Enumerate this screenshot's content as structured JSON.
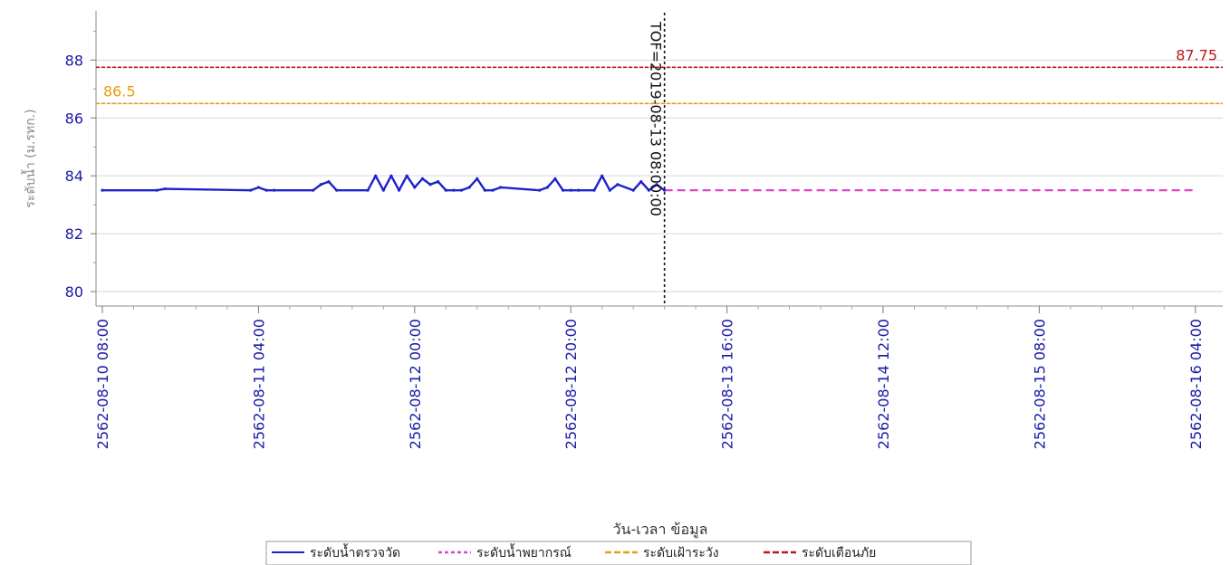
{
  "chart_data": {
    "type": "line",
    "xlabel": "วัน-เวลา ข้อมูล",
    "ylabel": "ระดับน้ำ (ม.รทก.)",
    "ylim": [
      79.5,
      89.7
    ],
    "yticks": [
      80,
      82,
      84,
      86,
      88
    ],
    "x_ticks": [
      "2562-08-10 08:00",
      "2562-08-11 04:00",
      "2562-08-12 00:00",
      "2562-08-12 20:00",
      "2562-08-13 16:00",
      "2562-08-14 12:00",
      "2562-08-15 08:00",
      "2562-08-16 04:00"
    ],
    "grid": true,
    "legend_position": "bottom",
    "tof": {
      "label": "TOF=2019-08-13 08:00:00",
      "x_hours": 72
    },
    "thresholds": [
      {
        "name": "ระดับเฝ้าระวัง",
        "value": 86.5,
        "value_label": "86.5",
        "color": "#e6a010"
      },
      {
        "name": "ระดับเตือนภัย",
        "value": 87.75,
        "value_label": "87.75",
        "color": "#c0161b"
      }
    ],
    "series": [
      {
        "name": "ระดับน้ำตรวจวัด",
        "color": "#1c22cc",
        "x_hours": [
          0,
          7,
          8,
          19,
          20,
          21,
          22,
          27,
          28,
          29,
          30,
          34,
          35,
          36,
          37,
          38,
          39,
          40,
          41,
          42,
          43,
          44,
          45,
          46,
          47,
          48,
          49,
          50,
          51,
          56,
          57,
          58,
          59,
          60,
          61,
          63,
          64,
          65,
          66,
          68,
          69,
          70,
          71,
          72
        ],
        "values": [
          83.5,
          83.5,
          83.55,
          83.5,
          83.6,
          83.5,
          83.5,
          83.5,
          83.7,
          83.8,
          83.5,
          83.5,
          84.0,
          83.5,
          84.0,
          83.5,
          84.0,
          83.6,
          83.9,
          83.7,
          83.8,
          83.5,
          83.5,
          83.5,
          83.6,
          83.9,
          83.5,
          83.5,
          83.6,
          83.5,
          83.6,
          83.9,
          83.5,
          83.5,
          83.5,
          83.5,
          84.0,
          83.5,
          83.7,
          83.5,
          83.8,
          83.5,
          83.7,
          83.5
        ]
      },
      {
        "name": "ระดับน้ำพยากรณ์",
        "color": "#dd44cc",
        "x_hours": [
          72,
          140
        ],
        "values": [
          83.5,
          83.5
        ]
      }
    ],
    "legend": [
      {
        "name": "ระดับน้ำตรวจวัด",
        "color": "#1c22cc",
        "dash": "none"
      },
      {
        "name": "ระดับน้ำพยากรณ์",
        "color": "#dd44cc",
        "dash": "dash"
      },
      {
        "name": "ระดับเฝ้าระวัง",
        "color": "#e6a010",
        "dash": "longdash"
      },
      {
        "name": "ระดับเตือนภัย",
        "color": "#c0161b",
        "dash": "longdash"
      }
    ]
  }
}
